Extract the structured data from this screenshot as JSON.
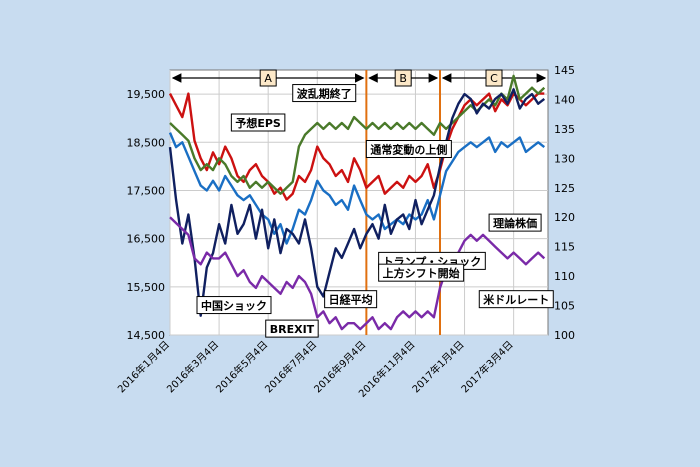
{
  "chart_data": {
    "type": "line",
    "title": "",
    "xlabel": "",
    "ylabel": "",
    "ylim_left": [
      14500,
      20000
    ],
    "ylim_right": [
      100,
      145
    ],
    "yticks_left": [
      "19,500",
      "18,500",
      "17,500",
      "16,500",
      "15,500",
      "14,500"
    ],
    "yticks_left_values": [
      19500,
      18500,
      17500,
      16500,
      15500,
      14500
    ],
    "yticks_right": [
      "145",
      "140",
      "135",
      "130",
      "125",
      "120",
      "115",
      "110",
      "105",
      "100"
    ],
    "yticks_right_values": [
      145,
      140,
      135,
      130,
      125,
      120,
      115,
      110,
      105,
      100
    ],
    "x_tick_labels": [
      "2016年1月4日",
      "2016年3月4日",
      "2016年5月4日",
      "2016年7月4日",
      "2016年9月4日",
      "2016年11月4日",
      "2017年1月4日",
      "2017年3月4日"
    ],
    "x_tick_months": [
      0,
      2,
      4,
      6,
      8,
      10,
      12,
      14
    ],
    "grid": true,
    "x_months": [
      0,
      0.25,
      0.5,
      0.75,
      1,
      1.25,
      1.5,
      1.75,
      2,
      2.25,
      2.5,
      2.75,
      3,
      3.25,
      3.5,
      3.75,
      4,
      4.25,
      4.5,
      4.75,
      5,
      5.25,
      5.5,
      5.75,
      6,
      6.25,
      6.5,
      6.75,
      7,
      7.25,
      7.5,
      7.75,
      8,
      8.25,
      8.5,
      8.75,
      9,
      9.25,
      9.5,
      9.75,
      10,
      10.25,
      10.5,
      10.75,
      11,
      11.25,
      11.5,
      11.75,
      12,
      12.25,
      12.5,
      12.75,
      13,
      13.25,
      13.5,
      13.75,
      14,
      14.25,
      14.5,
      14.75,
      15,
      15.25
    ],
    "series": [
      {
        "name": "予想EPS",
        "axis": "right",
        "color": "#cc1111",
        "values": [
          141,
          139,
          137,
          141,
          133,
          130,
          128,
          131,
          129,
          132,
          130,
          127,
          126,
          128,
          129,
          127,
          126,
          124,
          125,
          123,
          124,
          127,
          126,
          128,
          132,
          130,
          129,
          127,
          128,
          126,
          130,
          128,
          125,
          126,
          127,
          124,
          125,
          126,
          125,
          127,
          126,
          127,
          129,
          125,
          128,
          132,
          135,
          137,
          139,
          140,
          139,
          140,
          141,
          138,
          140,
          139,
          141,
          140,
          139,
          140,
          141,
          141
        ]
      },
      {
        "name": "理論株価",
        "axis": "left",
        "color": "#1a6fc4",
        "values": [
          18700,
          18400,
          18500,
          18200,
          17900,
          17600,
          17500,
          17700,
          17500,
          17800,
          17600,
          17400,
          17300,
          17400,
          17200,
          17000,
          16900,
          16600,
          16800,
          16400,
          16700,
          17100,
          17000,
          17300,
          17700,
          17500,
          17400,
          17200,
          17300,
          17100,
          17600,
          17300,
          17000,
          16900,
          17000,
          16700,
          16800,
          16900,
          16800,
          17000,
          16900,
          17000,
          17300,
          16900,
          17400,
          17900,
          18100,
          18300,
          18400,
          18500,
          18400,
          18500,
          18600,
          18300,
          18500,
          18400,
          18500,
          18600,
          18300,
          18400,
          18500,
          18400
        ]
      },
      {
        "name": "",
        "axis": "right",
        "color": "#4a7a2a",
        "values": [
          136,
          135,
          134,
          133,
          130,
          128,
          129,
          128,
          130,
          129,
          127,
          126,
          127,
          125,
          126,
          125,
          126,
          125,
          124,
          125,
          126,
          132,
          134,
          135,
          136,
          135,
          136,
          135,
          136,
          135,
          137,
          136,
          135,
          136,
          135,
          136,
          135,
          136,
          135,
          136,
          135,
          136,
          135,
          134,
          136,
          135,
          136,
          137,
          138,
          139,
          138,
          139,
          140,
          139,
          141,
          140,
          144,
          140,
          141,
          142,
          141,
          142
        ]
      },
      {
        "name": "日経平均",
        "axis": "left",
        "color": "#102060",
        "values": [
          18400,
          17300,
          16400,
          17000,
          16100,
          14900,
          15900,
          16200,
          16800,
          16400,
          17200,
          16600,
          16800,
          17200,
          16500,
          17100,
          16300,
          16900,
          16200,
          16700,
          16600,
          16400,
          16900,
          16300,
          15500,
          15300,
          15800,
          16300,
          16100,
          16400,
          16700,
          16300,
          16600,
          16800,
          16500,
          17200,
          16600,
          16900,
          17000,
          16700,
          17300,
          16800,
          17100,
          17400,
          18000,
          18500,
          19000,
          19300,
          19500,
          19400,
          19100,
          19300,
          19200,
          19400,
          19500,
          19300,
          19600,
          19200,
          19400,
          19500,
          19300,
          19400
        ]
      },
      {
        "name": "米ドルレート",
        "axis": "right",
        "color": "#7a2aa8",
        "values": [
          120,
          119,
          118,
          117,
          113,
          112,
          114,
          113,
          113,
          114,
          112,
          110,
          111,
          109,
          108,
          110,
          109,
          108,
          107,
          109,
          108,
          110,
          109,
          107,
          103,
          104,
          102,
          103,
          101,
          102,
          102,
          101,
          102,
          103,
          101,
          102,
          101,
          103,
          104,
          103,
          104,
          103,
          104,
          103,
          108,
          111,
          113,
          114,
          116,
          117,
          116,
          117,
          116,
          115,
          114,
          113,
          114,
          113,
          112,
          113,
          114,
          113
        ]
      }
    ],
    "segments": [
      {
        "label": "A",
        "start": 0,
        "end": 8
      },
      {
        "label": "B",
        "start": 8,
        "end": 11
      },
      {
        "label": "C",
        "start": 11,
        "end": 15.4
      }
    ],
    "vlines_months": [
      8,
      11
    ],
    "annotations": [
      {
        "text": "波乱期終了",
        "x": 5.0,
        "axis": "right",
        "y": 141
      },
      {
        "text": "予想EPS",
        "x": 2.5,
        "axis": "right",
        "y": 136
      },
      {
        "text": "通常変動の上側",
        "x": 8.0,
        "axis": "right",
        "y": 131.5
      },
      {
        "text": "理論株価",
        "x": 13.0,
        "axis": "right",
        "y": 119
      },
      {
        "text": "トランプ・ショック",
        "x": 8.5,
        "axis": "right",
        "y": 112.5
      },
      {
        "text": "上方シフト開始",
        "x": 8.5,
        "axis": "right",
        "y": 110.5
      },
      {
        "text": "米ドルレート",
        "x": 12.6,
        "axis": "right",
        "y": 106
      },
      {
        "text": "中国ショック",
        "x": 1.1,
        "axis": "right",
        "y": 105
      },
      {
        "text": "日経平均",
        "x": 6.3,
        "axis": "right",
        "y": 106
      },
      {
        "text": "BREXIT",
        "x": 3.9,
        "axis": "right",
        "y": 101
      }
    ]
  }
}
